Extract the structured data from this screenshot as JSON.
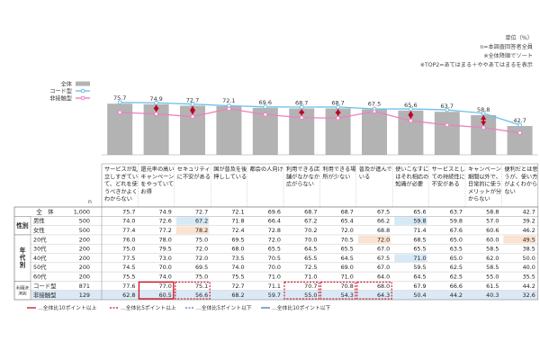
{
  "notes": [
    "単位（%）",
    "n=本調査回答者全員",
    "※全体降順でソート",
    "※TOP2=あてはまる＋ややあてはまるを表示"
  ],
  "chart_data": {
    "type": "bar",
    "categories": [
      "サービスが乱立しすぎていて、どれを使うべきかよくわからない",
      "還元率の高いキャンペーンをやっていてお得",
      "セキュリティに不安がある",
      "国が普及を後押ししている",
      "都会の人向け",
      "利用できる店舗がなかなか広がらない",
      "利用できる場所が少ない",
      "普及が進んでいる",
      "使いこなすにはそれ相応の知識が必要",
      "サービスとしての持続性に不安がある",
      "キャンペーン期間以外で、日常的に使うメリットが分からない",
      "便利だとは思うが、使い方がよくわからない"
    ],
    "series": [
      {
        "name": "全体",
        "kind": "bar",
        "color": "#b3b3b3",
        "values": [
          75.7,
          74.9,
          72.7,
          72.1,
          69.6,
          68.7,
          68.7,
          67.5,
          65.6,
          63.7,
          58.8,
          42.7
        ]
      },
      {
        "name": "コード型",
        "kind": "line",
        "color": "#6cc0e8",
        "values": [
          77.6,
          77.0,
          75.1,
          72.7,
          71.1,
          70.7,
          70.8,
          68.0,
          67.9,
          66.6,
          61.5,
          44.2
        ]
      },
      {
        "name": "非接触型",
        "kind": "line",
        "color": "#ee7fbf",
        "values": [
          62.8,
          60.5,
          56.6,
          68.2,
          59.7,
          55.0,
          54.3,
          64.3,
          50.4,
          44.2,
          40.3,
          32.6
        ]
      }
    ],
    "ylim": [
      0,
      100
    ],
    "legend": "top-left",
    "table": {
      "header": {
        "label": "全　体",
        "n": "1,000"
      },
      "n_label": "n",
      "groups": [
        {
          "name": "性別",
          "rows": [
            {
              "label": "男性",
              "n": "500",
              "values": [
                "74.0",
                "72.6",
                "67.2",
                "71.8",
                "66.4",
                "67.2",
                "65.4",
                "66.2",
                "59.8",
                "59.8",
                "57.0",
                "39.2"
              ]
            },
            {
              "label": "女性",
              "n": "500",
              "values": [
                "77.4",
                "77.2",
                "78.2",
                "72.4",
                "72.8",
                "70.2",
                "72.0",
                "68.8",
                "71.4",
                "67.6",
                "60.6",
                "46.2"
              ]
            }
          ]
        },
        {
          "name": "年代別",
          "rows": [
            {
              "label": "20代",
              "n": "200",
              "values": [
                "76.0",
                "78.0",
                "75.0",
                "69.5",
                "72.0",
                "70.0",
                "70.5",
                "72.0",
                "68.5",
                "65.0",
                "60.0",
                "49.5"
              ]
            },
            {
              "label": "30代",
              "n": "200",
              "values": [
                "75.0",
                "79.5",
                "72.0",
                "68.0",
                "65.5",
                "64.5",
                "65.5",
                "67.0",
                "65.5",
                "63.5",
                "58.5",
                "38.5"
              ]
            },
            {
              "label": "40代",
              "n": "200",
              "values": [
                "77.5",
                "73.0",
                "72.0",
                "73.5",
                "70.5",
                "65.5",
                "64.5",
                "67.5",
                "71.0",
                "65.0",
                "62.0",
                "50.0"
              ]
            },
            {
              "label": "50代",
              "n": "200",
              "values": [
                "74.5",
                "70.0",
                "69.5",
                "74.0",
                "70.0",
                "72.5",
                "69.0",
                "67.0",
                "59.5",
                "62.5",
                "58.5",
                "40.0"
              ]
            },
            {
              "label": "60代",
              "n": "200",
              "values": [
                "75.5",
                "74.0",
                "75.0",
                "75.5",
                "71.0",
                "71.0",
                "71.0",
                "64.0",
                "64.5",
                "62.5",
                "55.0",
                "35.5"
              ]
            }
          ]
        },
        {
          "name": "利用決済別",
          "rows": [
            {
              "label": "コード型",
              "n": "871",
              "values": [
                "77.6",
                "77.0",
                "75.1",
                "72.7",
                "71.1",
                "70.7",
                "70.8",
                "68.0",
                "67.9",
                "66.6",
                "61.5",
                "44.2"
              ]
            },
            {
              "label": "非接触型",
              "n": "129",
              "values": [
                "62.8",
                "60.5",
                "56.6",
                "68.2",
                "59.7",
                "55.0",
                "54.3",
                "64.3",
                "50.4",
                "44.2",
                "40.3",
                "32.6"
              ]
            }
          ]
        }
      ],
      "highlights": [
        {
          "row": 1,
          "col": 2,
          "type": "fill_orange"
        },
        {
          "row": 0,
          "col": 8,
          "type": "fill_blue"
        },
        {
          "row": 0,
          "col": 2,
          "type": "fill_blue"
        },
        {
          "row": 2,
          "col": 11,
          "type": "fill_orange"
        },
        {
          "row": 2,
          "col": 7,
          "type": "fill_orange"
        },
        {
          "row": 4,
          "col": 8,
          "type": "fill_blue"
        },
        {
          "row": 8,
          "col": 1,
          "type": "box_red_solid"
        },
        {
          "row": 8,
          "col": 2,
          "type": "box_red_dash"
        },
        {
          "row": 8,
          "col": 5,
          "type": "box_red_dash"
        },
        {
          "row": 8,
          "col": 6,
          "type": "box_red_dash"
        },
        {
          "row": 8,
          "col": 7,
          "type": "box_red_dash"
        }
      ],
      "blue_row_label": "非接触型"
    },
    "footer_legend": [
      "…全体比10ポイント以上",
      "…全体比5ポイント以上",
      "…全体比5ポイント以下",
      "…全体比10ポイント以下"
    ]
  }
}
